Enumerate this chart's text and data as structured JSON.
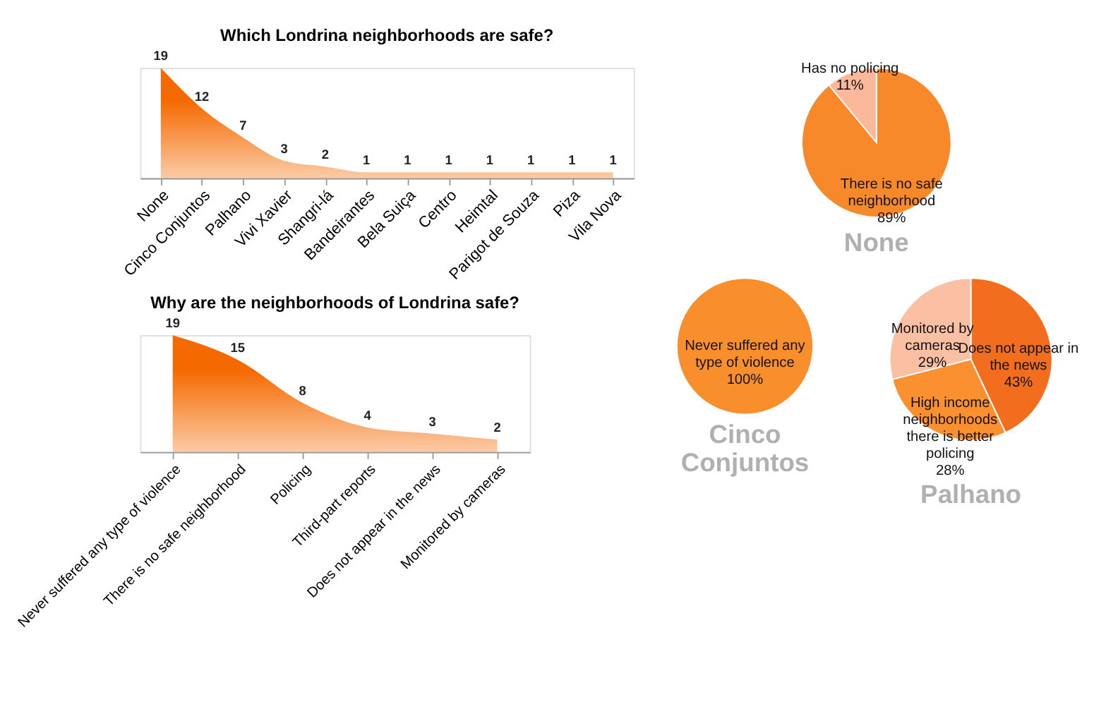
{
  "chart_data": [
    {
      "type": "area",
      "title": "Which Londrina neighborhoods are safe?",
      "categories": [
        "None",
        "Cinco Conjuntos",
        "Palhano",
        "Vivi Xavier",
        "Shangri-lá",
        "Bandeirantes",
        "Bela Suiça",
        "Centro",
        "Heimtal",
        "Parigot de Souza",
        "Piza",
        "Vila Nova"
      ],
      "values": [
        19,
        12,
        7,
        3,
        2,
        1,
        1,
        1,
        1,
        1,
        1,
        1
      ],
      "color": "#f56a00",
      "data_labels": true,
      "grid": false
    },
    {
      "type": "area",
      "title": "Why are the neighborhoods of Londrina safe?",
      "categories": [
        "Never suffered any type of violence",
        "There is no safe neighborhood",
        "Policing",
        "Third-part reports",
        "Does not appear in the news",
        "Monitored by cameras"
      ],
      "values": [
        19,
        15,
        8,
        4,
        3,
        2
      ],
      "color": "#f56a00",
      "data_labels": true,
      "grid": false
    },
    {
      "type": "pie",
      "title": "None",
      "categories": [
        "There is no safe neighborhood",
        "Has no policing"
      ],
      "values": [
        89,
        11
      ],
      "colors": [
        "#f7892b",
        "#fbb89a"
      ],
      "value_labels": [
        "89%",
        "11%"
      ]
    },
    {
      "type": "pie",
      "title": "Cinco Conjuntos",
      "categories": [
        "Never suffered any type of violence"
      ],
      "values": [
        100
      ],
      "colors": [
        "#f98f2c"
      ],
      "value_labels": [
        "100%"
      ]
    },
    {
      "type": "pie",
      "title": "Palhano",
      "categories": [
        "Does not appear in the news",
        "High income neighborhoods there is better policing",
        "Monitored by cameras"
      ],
      "values": [
        43,
        28,
        29
      ],
      "colors": [
        "#f26e1e",
        "#fa9030",
        "#fbbfa3"
      ],
      "value_labels": [
        "43%",
        "28%",
        "29%"
      ]
    }
  ]
}
